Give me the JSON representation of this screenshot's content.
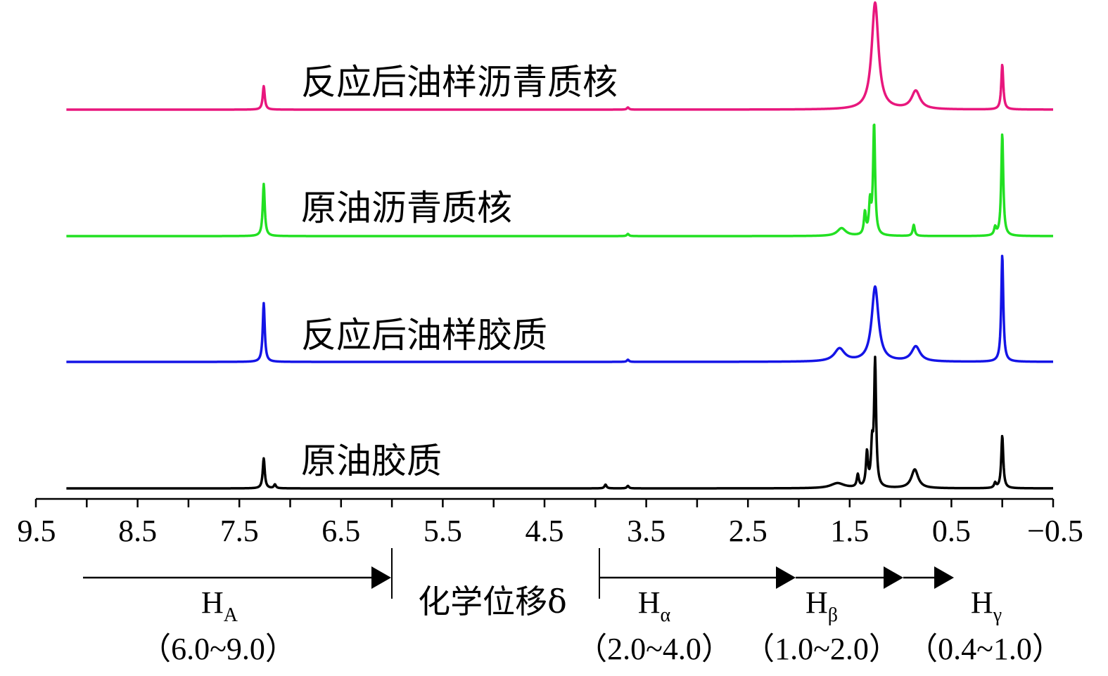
{
  "chart_data": {
    "type": "line",
    "title": "",
    "xlabel": "化学位移δ",
    "ylabel": "",
    "x_reversed": true,
    "xlim": [
      9.5,
      -0.5
    ],
    "ticks": [
      "9.5",
      "8.5",
      "7.5",
      "6.5",
      "5.5",
      "4.5",
      "3.5",
      "2.5",
      "1.5",
      "0.5",
      "−0.5"
    ],
    "tick_values": [
      9.5,
      8.5,
      7.5,
      6.5,
      5.5,
      4.5,
      3.5,
      2.5,
      1.5,
      0.5,
      -0.5
    ],
    "series": [
      {
        "name": "反应后油样沥青质核",
        "color": "#e8177d",
        "peaks": [
          {
            "ppm": 7.26,
            "height": 0.22
          },
          {
            "ppm": 3.68,
            "height": 0.02
          },
          {
            "ppm": 1.25,
            "height": 1.0,
            "width": 0.04
          },
          {
            "ppm": 0.85,
            "height": 0.17,
            "width": 0.05
          },
          {
            "ppm": 0.0,
            "height": 0.42
          }
        ]
      },
      {
        "name": "原油沥青质核",
        "color": "#22e022",
        "peaks": [
          {
            "ppm": 7.26,
            "height": 0.47
          },
          {
            "ppm": 3.68,
            "height": 0.02
          },
          {
            "ppm": 1.58,
            "height": 0.07,
            "width": 0.05
          },
          {
            "ppm": 1.35,
            "height": 0.2
          },
          {
            "ppm": 1.3,
            "height": 0.28
          },
          {
            "ppm": 1.26,
            "height": 1.0
          },
          {
            "ppm": 0.87,
            "height": 0.1
          },
          {
            "ppm": 0.07,
            "height": 0.07
          },
          {
            "ppm": 0.0,
            "height": 0.92
          }
        ]
      },
      {
        "name": "反应后油样胶质",
        "color": "#1414e6",
        "peaks": [
          {
            "ppm": 7.26,
            "height": 0.55
          },
          {
            "ppm": 3.68,
            "height": 0.02
          },
          {
            "ppm": 1.6,
            "height": 0.12,
            "width": 0.06
          },
          {
            "ppm": 1.25,
            "height": 0.7,
            "width": 0.04
          },
          {
            "ppm": 0.85,
            "height": 0.14,
            "width": 0.05
          },
          {
            "ppm": 0.0,
            "height": 1.0
          }
        ]
      },
      {
        "name": "原油胶质",
        "color": "#000000",
        "peaks": [
          {
            "ppm": 7.26,
            "height": 0.24
          },
          {
            "ppm": 7.15,
            "height": 0.03
          },
          {
            "ppm": 3.9,
            "height": 0.03
          },
          {
            "ppm": 3.68,
            "height": 0.02
          },
          {
            "ppm": 1.62,
            "height": 0.04,
            "width": 0.08
          },
          {
            "ppm": 1.42,
            "height": 0.1
          },
          {
            "ppm": 1.33,
            "height": 0.27
          },
          {
            "ppm": 1.28,
            "height": 0.3
          },
          {
            "ppm": 1.25,
            "height": 1.0
          },
          {
            "ppm": 0.86,
            "height": 0.15,
            "width": 0.04
          },
          {
            "ppm": 0.07,
            "height": 0.04
          },
          {
            "ppm": 0.0,
            "height": 0.42
          }
        ]
      }
    ],
    "regions": [
      {
        "label": "H",
        "sub": "A",
        "range": "（6.0~9.0）"
      },
      {
        "label": "H",
        "sub": "α",
        "range": "（2.0~4.0）"
      },
      {
        "label": "H",
        "sub": "β",
        "range": "（1.0~2.0）"
      },
      {
        "label": "H",
        "sub": "γ",
        "range": "（0.4~1.0）"
      }
    ],
    "grid": false,
    "legend": "labels placed above each trace"
  }
}
